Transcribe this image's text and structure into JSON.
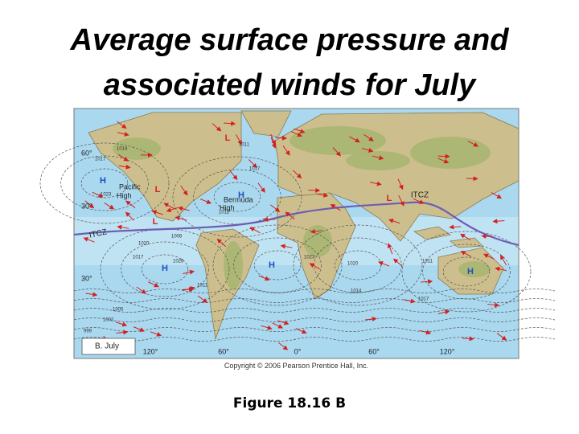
{
  "title": [
    "Average surface pressure and",
    "associated winds for July"
  ],
  "map": {
    "pressure_centers": [
      "H",
      "L",
      "L",
      "H",
      "L",
      "H",
      "H",
      "L",
      "H"
    ],
    "names": [
      "Pacific",
      "High",
      "Bermuda",
      "High"
    ],
    "itcz_labels": [
      "ITCZ",
      "ITCZ"
    ],
    "latitude_labels": [
      "60°",
      "30°",
      "30°"
    ],
    "longitude_labels": [
      "120°",
      "60°",
      "0°",
      "60°",
      "120°"
    ],
    "isobar_labels": [
      "1011",
      "1014",
      "1017",
      "1017",
      "1023",
      "1011",
      "1008",
      "1020",
      "1017",
      "1026",
      "1011",
      "1005",
      "1002",
      "999",
      "1023",
      "1020",
      "1014",
      "1011",
      "1017"
    ],
    "legend": "B. July"
  },
  "copyright": "Copyright © 2006 Pearson Prentice Hall, Inc.",
  "caption": "Figure 18.16 B"
}
